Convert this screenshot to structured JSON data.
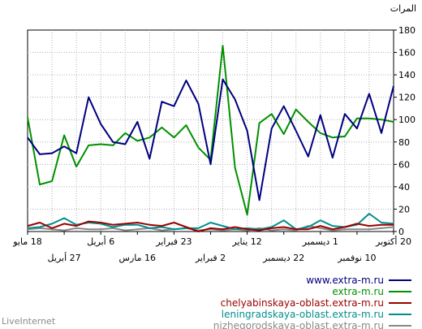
{
  "chart_data": {
    "type": "line",
    "ylabel": "المرات",
    "ylim": [
      0,
      180
    ],
    "yticks": [
      0,
      20,
      40,
      60,
      80,
      100,
      120,
      140,
      160,
      180
    ],
    "x_tick_labels_top": [
      "20 أكتوبر",
      "1 ديسمبر",
      "12 يناير",
      "23 فبراير",
      "6 أبريل",
      "18 مايو"
    ],
    "x_tick_labels_bottom": [
      "10 نوفمبر",
      "22 ديسمبر",
      "2 فبراير",
      "16 مارس",
      "27 أبريل"
    ],
    "grid": true,
    "legend_placement": "bottom-right",
    "watermark": "LiveInternet",
    "x_note": "x index 0 = rightmost (20 أكتوبر), increasing to the left, 31 weekly points",
    "series": [
      {
        "name": "www.extra-m.ru",
        "color": "#00007f",
        "values": [
          130,
          88,
          123,
          92,
          105,
          66,
          104,
          67,
          90,
          112,
          92,
          28,
          90,
          118,
          136,
          60,
          114,
          135,
          112,
          116,
          65,
          98,
          78,
          80,
          96,
          120,
          70,
          76,
          70,
          69,
          84
        ]
      },
      {
        "name": "extra-m.ru",
        "color": "#009000",
        "values": [
          98,
          100,
          101,
          101,
          85,
          84,
          88,
          98,
          109,
          87,
          105,
          97,
          15,
          57,
          166,
          64,
          75,
          95,
          84,
          93,
          84,
          81,
          88,
          77,
          78,
          77,
          58,
          86,
          45,
          42,
          102
        ]
      },
      {
        "name": "chelyabinskaya-oblast.extra-m.ru",
        "color": "#9a0000",
        "values": [
          6,
          6,
          5,
          7,
          4,
          2,
          5,
          2,
          2,
          4,
          3,
          1,
          2,
          4,
          2,
          3,
          0,
          4,
          8,
          5,
          6,
          8,
          7,
          6,
          8,
          9,
          5,
          7,
          3,
          8,
          5
        ]
      },
      {
        "name": "leningradskaya-oblast.extra-m.ru",
        "color": "#008e8e",
        "values": [
          7,
          8,
          16,
          6,
          4,
          5,
          10,
          4,
          2,
          10,
          4,
          2,
          3,
          2,
          5,
          8,
          3,
          3,
          2,
          4,
          3,
          6,
          6,
          4,
          7,
          8,
          6,
          12,
          7,
          4,
          3
        ]
      },
      {
        "name": "nizhegorodskaya-oblast.extra-m.ru",
        "color": "#888888",
        "values": [
          4,
          3,
          2,
          2,
          2,
          1,
          3,
          5,
          1,
          2,
          1,
          3,
          1,
          2,
          1,
          2,
          1,
          3,
          2,
          1,
          3,
          2,
          1,
          3,
          2,
          2,
          3,
          1,
          2,
          3,
          2
        ]
      }
    ]
  }
}
